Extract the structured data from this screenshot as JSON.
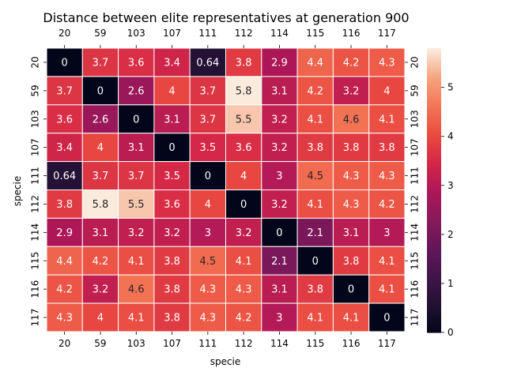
{
  "chart_data": {
    "type": "heatmap",
    "title": "Distance between elite representatives at generation 900",
    "xlabel": "specie",
    "ylabel": "specie",
    "x_categories": [
      "20",
      "59",
      "103",
      "107",
      "111",
      "112",
      "114",
      "115",
      "116",
      "117"
    ],
    "y_categories": [
      "20",
      "59",
      "103",
      "107",
      "111",
      "112",
      "114",
      "115",
      "116",
      "117"
    ],
    "values": [
      [
        0,
        3.7,
        3.6,
        3.4,
        0.64,
        3.8,
        2.9,
        4.4,
        4.2,
        4.3
      ],
      [
        3.7,
        0,
        2.6,
        4,
        3.7,
        5.8,
        3.1,
        4.2,
        3.2,
        4
      ],
      [
        3.6,
        2.6,
        0,
        3.1,
        3.7,
        5.5,
        3.2,
        4.1,
        4.6,
        4.1
      ],
      [
        3.4,
        4,
        3.1,
        0,
        3.5,
        3.6,
        3.2,
        3.8,
        3.8,
        3.8
      ],
      [
        0.64,
        3.7,
        3.7,
        3.5,
        0,
        4,
        3,
        4.5,
        4.3,
        4.3
      ],
      [
        3.8,
        5.8,
        5.5,
        3.6,
        4,
        0,
        3.2,
        4.1,
        4.3,
        4.2
      ],
      [
        2.9,
        3.1,
        3.2,
        3.2,
        3,
        3.2,
        0,
        2.1,
        3.1,
        3
      ],
      [
        4.4,
        4.2,
        4.1,
        3.8,
        4.5,
        4.1,
        2.1,
        0,
        3.8,
        4.1
      ],
      [
        4.2,
        3.2,
        4.6,
        3.8,
        4.3,
        4.3,
        3.1,
        3.8,
        0,
        4.1
      ],
      [
        4.3,
        4,
        4.1,
        3.8,
        4.3,
        4.2,
        3,
        4.1,
        4.1,
        0
      ]
    ],
    "value_labels": [
      [
        "0",
        "3.7",
        "3.6",
        "3.4",
        "0.64",
        "3.8",
        "2.9",
        "4.4",
        "4.2",
        "4.3"
      ],
      [
        "3.7",
        "0",
        "2.6",
        "4",
        "3.7",
        "5.8",
        "3.1",
        "4.2",
        "3.2",
        "4"
      ],
      [
        "3.6",
        "2.6",
        "0",
        "3.1",
        "3.7",
        "5.5",
        "3.2",
        "4.1",
        "4.6",
        "4.1"
      ],
      [
        "3.4",
        "4",
        "3.1",
        "0",
        "3.5",
        "3.6",
        "3.2",
        "3.8",
        "3.8",
        "3.8"
      ],
      [
        "0.64",
        "3.7",
        "3.7",
        "3.5",
        "0",
        "4",
        "3",
        "4.5",
        "4.3",
        "4.3"
      ],
      [
        "3.8",
        "5.8",
        "5.5",
        "3.6",
        "4",
        "0",
        "3.2",
        "4.1",
        "4.3",
        "4.2"
      ],
      [
        "2.9",
        "3.1",
        "3.2",
        "3.2",
        "3",
        "3.2",
        "0",
        "2.1",
        "3.1",
        "3"
      ],
      [
        "4.4",
        "4.2",
        "4.1",
        "3.8",
        "4.5",
        "4.1",
        "2.1",
        "0",
        "3.8",
        "4.1"
      ],
      [
        "4.2",
        "3.2",
        "4.6",
        "3.8",
        "4.3",
        "4.3",
        "3.1",
        "3.8",
        "0",
        "4.1"
      ],
      [
        "4.3",
        "4",
        "4.1",
        "3.8",
        "4.3",
        "4.2",
        "3",
        "4.1",
        "4.1",
        "0"
      ]
    ],
    "colorbar": {
      "range": [
        0,
        5.8
      ],
      "ticks": [
        0,
        1,
        2,
        3,
        4,
        5
      ],
      "tick_labels": [
        "0",
        "1",
        "2",
        "3",
        "4",
        "5"
      ]
    },
    "colormap": "rocket",
    "tick_labels_on": [
      "top",
      "bottom",
      "left",
      "right"
    ]
  }
}
